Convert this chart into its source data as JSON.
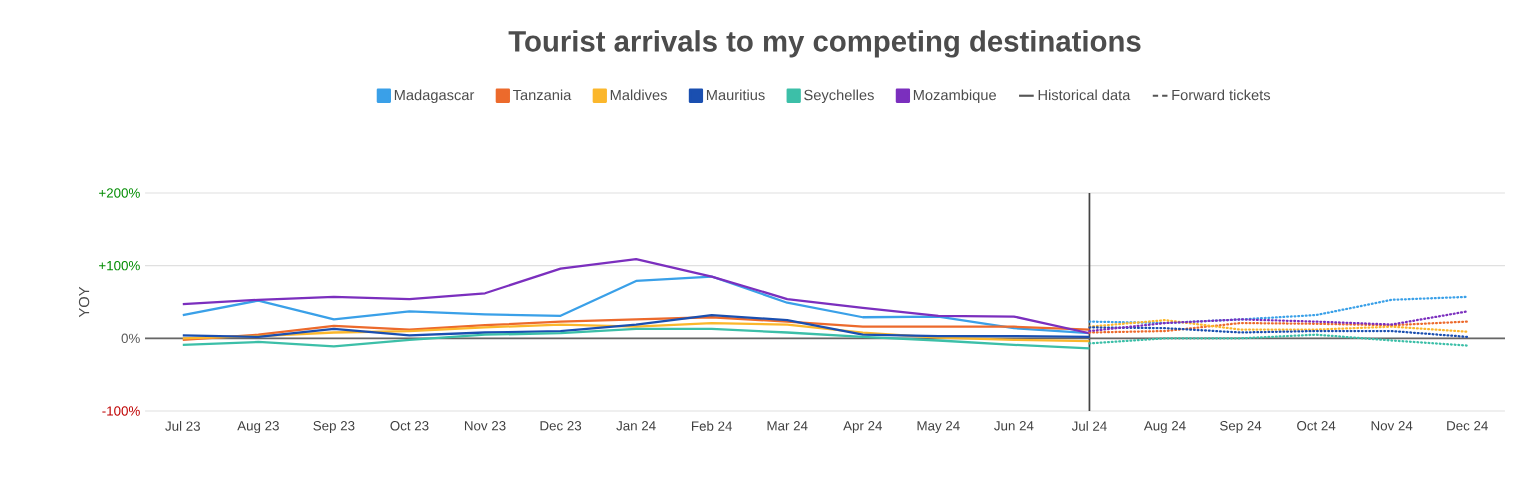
{
  "chart_data": {
    "type": "line",
    "title": "Tourist arrivals to my competing destinations",
    "ylabel": "YOY",
    "categories": [
      "Jul 23",
      "Aug 23",
      "Sep 23",
      "Oct 23",
      "Nov 23",
      "Dec 23",
      "Jan 24",
      "Feb 24",
      "Mar 24",
      "Apr 24",
      "May 24",
      "Jun 24",
      "Jul 24",
      "Aug 24",
      "Sep 24",
      "Oct 24",
      "Nov 24",
      "Dec 24"
    ],
    "ylim": [
      -100,
      200
    ],
    "yticks": [
      {
        "value": -100,
        "label": "-100%"
      },
      {
        "value": 0,
        "label": "0%"
      },
      {
        "value": 100,
        "label": "+100%"
      },
      {
        "value": 200,
        "label": "+200%"
      }
    ],
    "grid": "y",
    "legend": "top",
    "ref_lines": [
      {
        "axis": "x",
        "value": "Jul 24",
        "color": "#444444"
      },
      {
        "axis": "y",
        "value": 0,
        "color": "#666666"
      }
    ],
    "series": [
      {
        "name": "Madagascar",
        "color": "#3aa0e8",
        "line_style": "solid",
        "values": [
          32,
          52,
          26,
          37,
          33,
          31,
          79,
          85,
          49,
          29,
          30,
          14,
          7,
          null,
          null,
          null,
          null,
          null
        ]
      },
      {
        "name": "Tanzania",
        "color": "#ec6a2c",
        "line_style": "solid",
        "values": [
          -2,
          5,
          17,
          12,
          18,
          23,
          26,
          29,
          23,
          16,
          16,
          16,
          12,
          null,
          null,
          null,
          null,
          null
        ]
      },
      {
        "name": "Maldives",
        "color": "#fbb72c",
        "line_style": "solid",
        "values": [
          0,
          3,
          8,
          10,
          15,
          19,
          16,
          21,
          19,
          8,
          1,
          -2,
          -4,
          null,
          null,
          null,
          null,
          null
        ]
      },
      {
        "name": "Mauritius",
        "color": "#1a4fb0",
        "line_style": "solid",
        "values": [
          4,
          2,
          13,
          4,
          8,
          10,
          19,
          32,
          25,
          5,
          3,
          3,
          2,
          null,
          null,
          null,
          null,
          null
        ]
      },
      {
        "name": "Seychelles",
        "color": "#3cbfa8",
        "line_style": "solid",
        "values": [
          -9,
          -5,
          -11,
          -2,
          5,
          7,
          13,
          13,
          8,
          2,
          -3,
          -9,
          -14,
          null,
          null,
          null,
          null,
          null
        ]
      },
      {
        "name": "Mozambique",
        "color": "#7b2fbe",
        "line_style": "solid",
        "values": [
          47,
          53,
          57,
          54,
          62,
          96,
          109,
          85,
          54,
          42,
          31,
          30,
          7,
          null,
          null,
          null,
          null,
          null
        ]
      },
      {
        "color": "#3aa0e8",
        "line_style": "dotted",
        "values": [
          null,
          null,
          null,
          null,
          null,
          null,
          null,
          null,
          null,
          null,
          null,
          null,
          23,
          21,
          26,
          32,
          53,
          57
        ]
      },
      {
        "color": "#ec6a2c",
        "line_style": "dotted",
        "values": [
          null,
          null,
          null,
          null,
          null,
          null,
          null,
          null,
          null,
          null,
          null,
          null,
          8,
          10,
          21,
          20,
          18,
          23
        ]
      },
      {
        "color": "#fbb72c",
        "line_style": "dotted",
        "values": [
          null,
          null,
          null,
          null,
          null,
          null,
          null,
          null,
          null,
          null,
          null,
          null,
          16,
          25,
          12,
          12,
          16,
          9
        ]
      },
      {
        "color": "#1a4fb0",
        "line_style": "dotted",
        "values": [
          null,
          null,
          null,
          null,
          null,
          null,
          null,
          null,
          null,
          null,
          null,
          null,
          15,
          14,
          8,
          10,
          10,
          2
        ]
      },
      {
        "color": "#3cbfa8",
        "line_style": "dotted",
        "values": [
          null,
          null,
          null,
          null,
          null,
          null,
          null,
          null,
          null,
          null,
          null,
          null,
          -7,
          0,
          0,
          5,
          -3,
          -10
        ]
      },
      {
        "color": "#7b2fbe",
        "line_style": "dotted",
        "values": [
          null,
          null,
          null,
          null,
          null,
          null,
          null,
          null,
          null,
          null,
          null,
          null,
          10,
          21,
          26,
          23,
          19,
          37
        ]
      },
      {
        "name": "Historical data",
        "color": "#555555",
        "line_style": "solid",
        "values": [
          null,
          null,
          null,
          null,
          null,
          null,
          null,
          null,
          null,
          null,
          null,
          null,
          null,
          null,
          null,
          null,
          null,
          null
        ]
      },
      {
        "name": "Forward tickets",
        "color": "#555555",
        "line_style": "dashed",
        "values": [
          null,
          null,
          null,
          null,
          null,
          null,
          null,
          null,
          null,
          null,
          null,
          null,
          null,
          null,
          null,
          null,
          null,
          null
        ]
      }
    ]
  }
}
